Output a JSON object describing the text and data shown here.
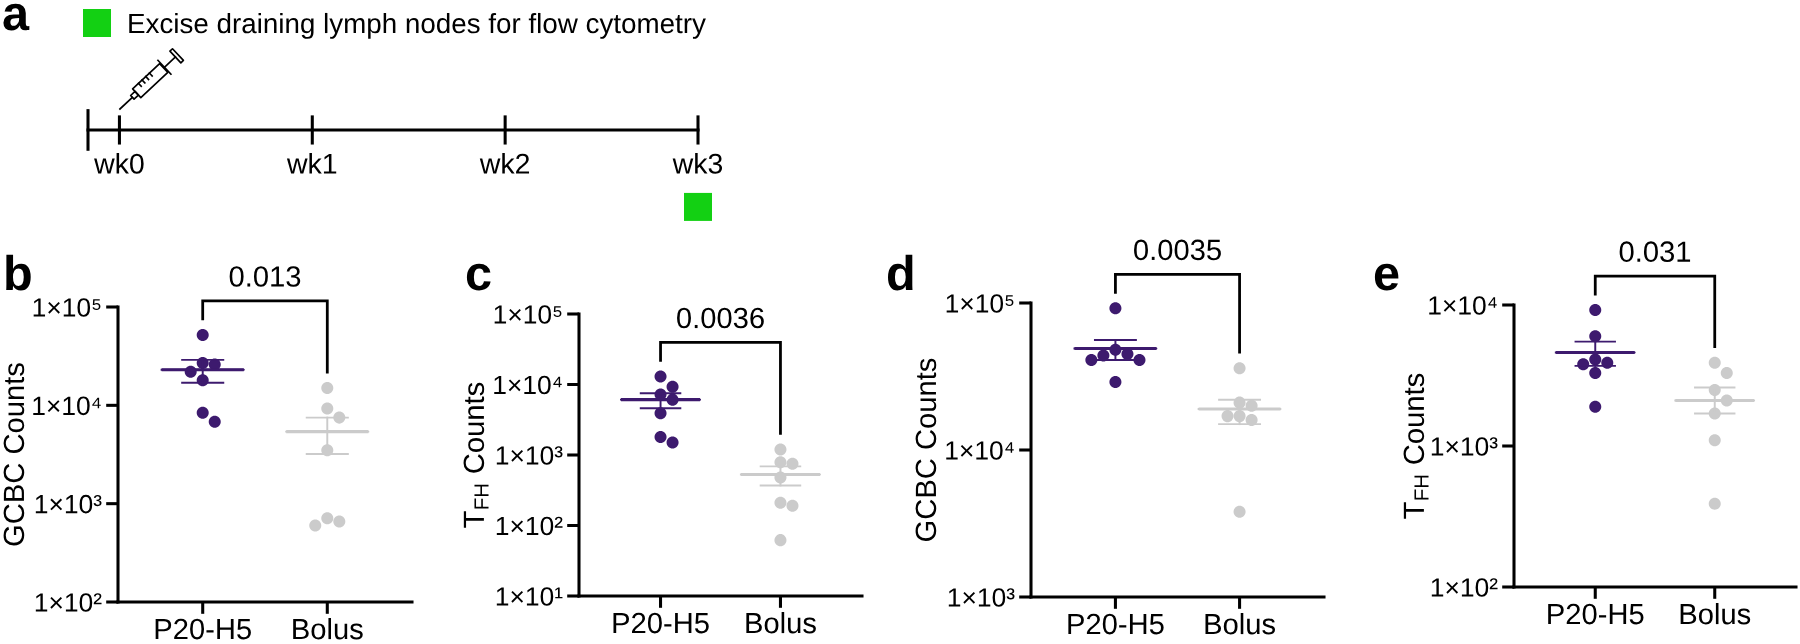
{
  "chart_data": [
    {
      "type": "other",
      "title": "a",
      "categories": [
        "wk0",
        "wk1",
        "wk2",
        "wk3"
      ],
      "color": "#13d013",
      "annotations": [
        "Excise draining lymph nodes for flow cytometry"
      ]
    },
    {
      "type": "scatter",
      "title": "b",
      "ylabel": "GCBC Counts",
      "categories": [
        "P20-H5",
        "Bolus"
      ],
      "log": "y",
      "ylim": [
        100,
        100000
      ],
      "yticks": [
        {
          "value": 100,
          "label": "1×10²"
        },
        {
          "value": 1000,
          "label": "1×10³"
        },
        {
          "value": 10000,
          "label": "1×10⁴"
        },
        {
          "value": 100000,
          "label": "1×10⁵"
        }
      ],
      "marker": "circle",
      "annotations": [
        "0.013"
      ],
      "series": [
        {
          "color": "#3d1a6e",
          "x": [
            "P20-H5",
            "P20-H5",
            "P20-H5",
            "P20-H5",
            "P20-H5",
            "P20-H5",
            "P20-H5"
          ],
          "values": [
            52000,
            27000,
            26000,
            22000,
            18000,
            8400,
            6800
          ]
        },
        {
          "color": "#cbcbcb",
          "x": [
            "Bolus",
            "Bolus",
            "Bolus",
            "Bolus",
            "Bolus",
            "Bolus",
            "Bolus"
          ],
          "values": [
            15000,
            9300,
            7500,
            3500,
            710,
            660,
            600
          ]
        },
        {
          "type": "box",
          "colors": [
            "#3d1a6e",
            "#cbcbcb"
          ],
          "boxes": [
            {
              "low": 17000,
              "q1": 23000,
              "median": 23000,
              "q3": 23000,
              "high": 29000
            },
            {
              "low": 3200,
              "q1": 5400,
              "median": 5400,
              "q3": 5400,
              "high": 7500
            }
          ]
        }
      ]
    },
    {
      "type": "scatter",
      "title": "c",
      "ylabel": "T$_{FH}$ Counts",
      "categories": [
        "P20-H5",
        "Bolus"
      ],
      "log": "y",
      "ylim": [
        10,
        100000
      ],
      "yticks": [
        {
          "value": 10,
          "label": "1×10¹"
        },
        {
          "value": 100,
          "label": "1×10²"
        },
        {
          "value": 1000,
          "label": "1×10³"
        },
        {
          "value": 10000,
          "label": "1×10⁴"
        },
        {
          "value": 100000,
          "label": "1×10⁵"
        }
      ],
      "marker": "circle",
      "annotations": [
        "0.0036"
      ],
      "series": [
        {
          "color": "#3d1a6e",
          "x": [
            "P20-H5",
            "P20-H5",
            "P20-H5",
            "P20-H5",
            "P20-H5",
            "P20-H5",
            "P20-H5"
          ],
          "values": [
            13000,
            9300,
            7200,
            6100,
            3900,
            1800,
            1500
          ]
        },
        {
          "color": "#cbcbcb",
          "x": [
            "Bolus",
            "Bolus",
            "Bolus",
            "Bolus",
            "Bolus",
            "Bolus",
            "Bolus"
          ],
          "values": [
            1200,
            790,
            750,
            480,
            210,
            190,
            62
          ]
        },
        {
          "type": "box",
          "colors": [
            "#3d1a6e",
            "#cbcbcb"
          ],
          "boxes": [
            {
              "low": 4600,
              "q1": 6100,
              "median": 6100,
              "q3": 6100,
              "high": 7500
            },
            {
              "low": 370,
              "q1": 530,
              "median": 530,
              "q3": 530,
              "high": 690
            }
          ]
        }
      ]
    },
    {
      "type": "scatter",
      "title": "d",
      "ylabel": "GCBC Counts",
      "categories": [
        "P20-H5",
        "Bolus"
      ],
      "log": "y",
      "ylim": [
        1000,
        100000
      ],
      "yticks": [
        {
          "value": 1000,
          "label": "1×10³"
        },
        {
          "value": 10000,
          "label": "1×10⁴"
        },
        {
          "value": 100000,
          "label": "1×10⁵"
        }
      ],
      "marker": "circle",
      "annotations": [
        "0.0035"
      ],
      "series": [
        {
          "color": "#3d1a6e",
          "x": [
            "P20-H5",
            "P20-H5",
            "P20-H5",
            "P20-H5",
            "P20-H5",
            "P20-H5",
            "P20-H5"
          ],
          "values": [
            92000,
            48000,
            45000,
            44000,
            41000,
            41000,
            29000
          ]
        },
        {
          "color": "#cbcbcb",
          "x": [
            "Bolus",
            "Bolus",
            "Bolus",
            "Bolus",
            "Bolus",
            "Bolus",
            "Bolus"
          ],
          "values": [
            36000,
            21000,
            20000,
            17000,
            17000,
            16000,
            3800
          ]
        },
        {
          "type": "box",
          "colors": [
            "#3d1a6e",
            "#cbcbcb"
          ],
          "boxes": [
            {
              "low": 41000,
              "q1": 49000,
              "median": 49000,
              "q3": 49000,
              "high": 56000
            },
            {
              "low": 15000,
              "q1": 19000,
              "median": 19000,
              "q3": 19000,
              "high": 22000
            }
          ]
        }
      ]
    },
    {
      "type": "scatter",
      "title": "e",
      "ylabel": "T$_{FH}$ Counts",
      "categories": [
        "P20-H5",
        "Bolus"
      ],
      "log": "y",
      "ylim": [
        100,
        10000
      ],
      "yticks": [
        {
          "value": 100,
          "label": "1×10²"
        },
        {
          "value": 1000,
          "label": "1×10³"
        },
        {
          "value": 10000,
          "label": "1×10⁴"
        }
      ],
      "marker": "circle",
      "annotations": [
        "0.031"
      ],
      "series": [
        {
          "color": "#3d1a6e",
          "x": [
            "P20-H5",
            "P20-H5",
            "P20-H5",
            "P20-H5",
            "P20-H5",
            "P20-H5",
            "P20-H5"
          ],
          "values": [
            9200,
            6000,
            4100,
            3900,
            3800,
            3300,
            1900
          ]
        },
        {
          "color": "#cbcbcb",
          "x": [
            "Bolus",
            "Bolus",
            "Bolus",
            "Bolus",
            "Bolus",
            "Bolus",
            "Bolus"
          ],
          "values": [
            3900,
            3300,
            2500,
            2100,
            1700,
            1100,
            390
          ]
        },
        {
          "type": "box",
          "colors": [
            "#3d1a6e",
            "#cbcbcb"
          ],
          "boxes": [
            {
              "low": 3700,
              "q1": 4600,
              "median": 4600,
              "q3": 4600,
              "high": 5500
            },
            {
              "low": 1700,
              "q1": 2100,
              "median": 2100,
              "q3": 2100,
              "high": 2600
            }
          ]
        }
      ]
    }
  ]
}
